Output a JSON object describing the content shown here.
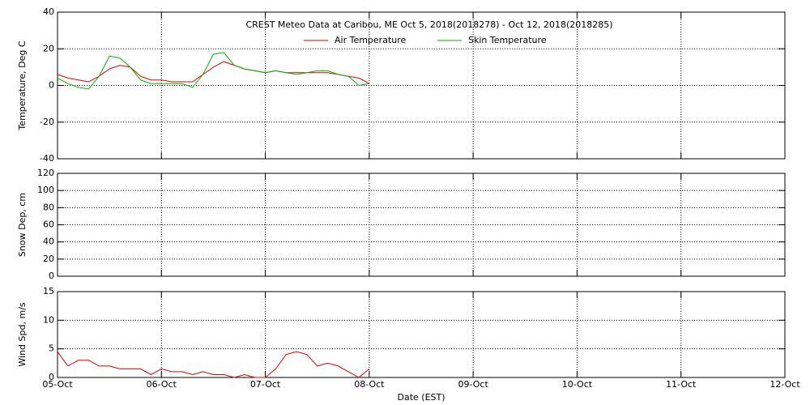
{
  "chart_data": [
    {
      "type": "line",
      "title": "CREST Meteo Data at Caribou, ME   Oct  5, 2018(2018278) - Oct 12, 2018(2018285)",
      "ylabel": "Temperature, Deg C",
      "xlim": [
        5,
        12
      ],
      "ylim": [
        -40,
        40
      ],
      "yticks": [
        -40,
        -20,
        0,
        20,
        40
      ],
      "grid": true,
      "legend": "upper center",
      "x": [
        5.0,
        5.1,
        5.2,
        5.3,
        5.4,
        5.5,
        5.6,
        5.7,
        5.8,
        5.9,
        6.0,
        6.1,
        6.2,
        6.3,
        6.4,
        6.5,
        6.6,
        6.7,
        6.8,
        6.9,
        7.0,
        7.1,
        7.2,
        7.3,
        7.4,
        7.5,
        7.6,
        7.7,
        7.8,
        7.9,
        8.0
      ],
      "series": [
        {
          "name": "Air Temperature",
          "color": "#e00000",
          "values": [
            6,
            4,
            3,
            2,
            5,
            9,
            11,
            10,
            5,
            3,
            3,
            2,
            2,
            2,
            6,
            10,
            13,
            11,
            9,
            8,
            7,
            8,
            7,
            7,
            7,
            7,
            7,
            6,
            5,
            4,
            1
          ]
        },
        {
          "name": "Skin Temperature",
          "color": "#00b000",
          "values": [
            4,
            1,
            -1,
            -2,
            5,
            16,
            15,
            10,
            3,
            1,
            1,
            1,
            1,
            -1,
            6,
            17,
            18,
            11,
            9,
            8,
            7,
            8,
            7,
            6,
            7,
            8,
            8,
            6,
            5,
            0,
            1
          ]
        }
      ]
    },
    {
      "type": "line",
      "ylabel": "Snow Dep, cm",
      "xlim": [
        5,
        12
      ],
      "ylim": [
        0,
        120
      ],
      "yticks": [
        0,
        20,
        40,
        60,
        80,
        100,
        120
      ],
      "grid": true
    },
    {
      "type": "line",
      "ylabel": "Wind Spd, m/s",
      "xlabel": "Date (EST)",
      "xlim": [
        5,
        12
      ],
      "ylim": [
        0,
        15
      ],
      "yticks": [
        0,
        5,
        10,
        15
      ],
      "grid": true,
      "xticks": [
        {
          "value": 5,
          "label": "05-Oct"
        },
        {
          "value": 6,
          "label": "06-Oct"
        },
        {
          "value": 7,
          "label": "07-Oct"
        },
        {
          "value": 8,
          "label": "08-Oct"
        },
        {
          "value": 9,
          "label": "09-Oct"
        },
        {
          "value": 10,
          "label": "10-Oct"
        },
        {
          "value": 11,
          "label": "11-Oct"
        },
        {
          "value": 12,
          "label": "12-Oct"
        }
      ],
      "x": [
        5.0,
        5.1,
        5.2,
        5.3,
        5.4,
        5.5,
        5.6,
        5.7,
        5.8,
        5.9,
        6.0,
        6.1,
        6.2,
        6.3,
        6.4,
        6.5,
        6.6,
        6.7,
        6.8,
        6.9,
        7.0,
        7.1,
        7.2,
        7.3,
        7.4,
        7.5,
        7.6,
        7.7,
        7.8,
        7.9,
        8.0
      ],
      "series": [
        {
          "name": "Wind Speed",
          "color": "#e00000",
          "values": [
            4.5,
            2,
            3,
            3,
            2,
            2,
            1.5,
            1.5,
            1.5,
            0.5,
            1.5,
            1,
            1,
            0.5,
            1,
            0.5,
            0.5,
            0,
            0.5,
            0,
            0,
            1.5,
            4,
            4.5,
            4,
            2,
            2.5,
            2,
            1,
            0,
            1.5
          ]
        }
      ]
    }
  ]
}
